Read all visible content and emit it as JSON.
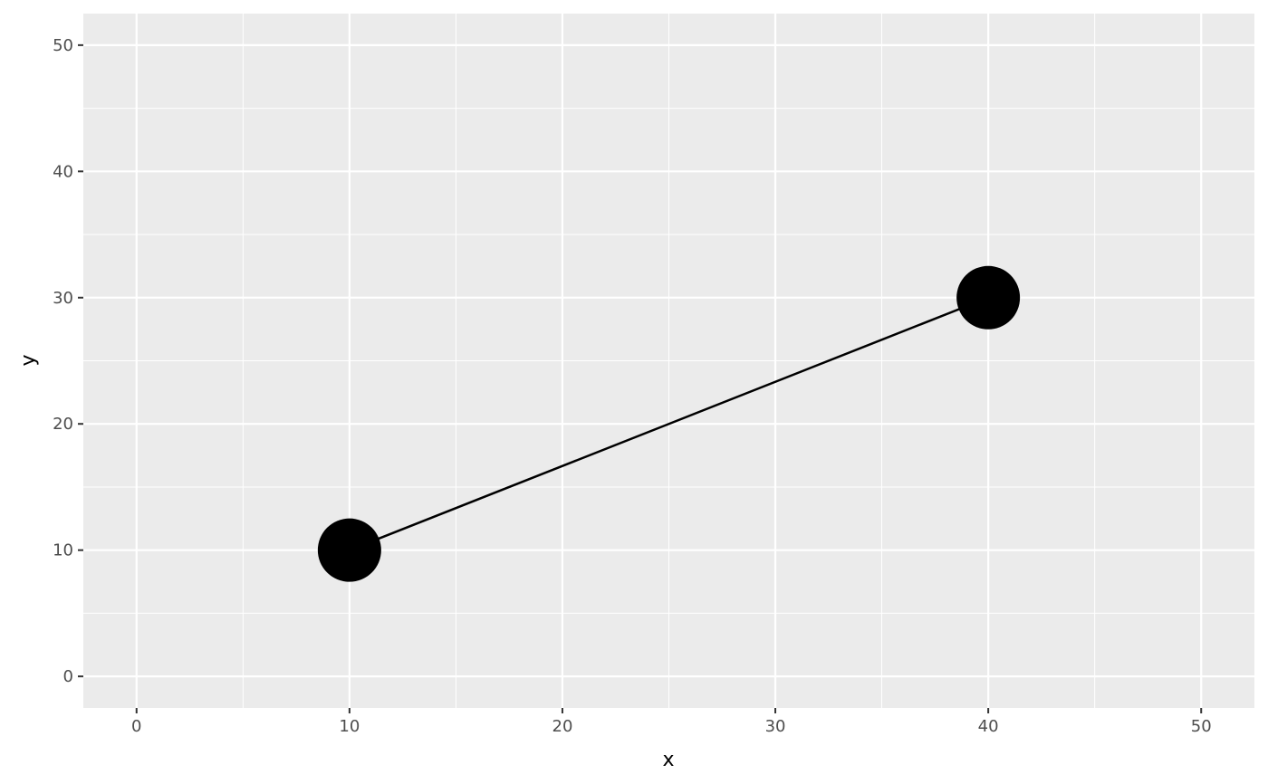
{
  "chart_data": {
    "type": "line",
    "title": "",
    "xlabel": "x",
    "ylabel": "y",
    "xlim": [
      -2.5,
      52.5
    ],
    "ylim": [
      -2.5,
      52.5
    ],
    "xticks": [
      0,
      10,
      20,
      30,
      40,
      50
    ],
    "yticks": [
      0,
      10,
      20,
      30,
      40,
      50
    ],
    "grid": true,
    "legend": "none",
    "series": [
      {
        "x": [
          10,
          40
        ],
        "y": [
          10,
          30
        ],
        "markers": true
      }
    ],
    "colors": {
      "panel": "#ebebeb",
      "grid": "#ffffff",
      "line": "#000000",
      "point": "#000000",
      "tick_text": "#4d4d4d"
    }
  }
}
